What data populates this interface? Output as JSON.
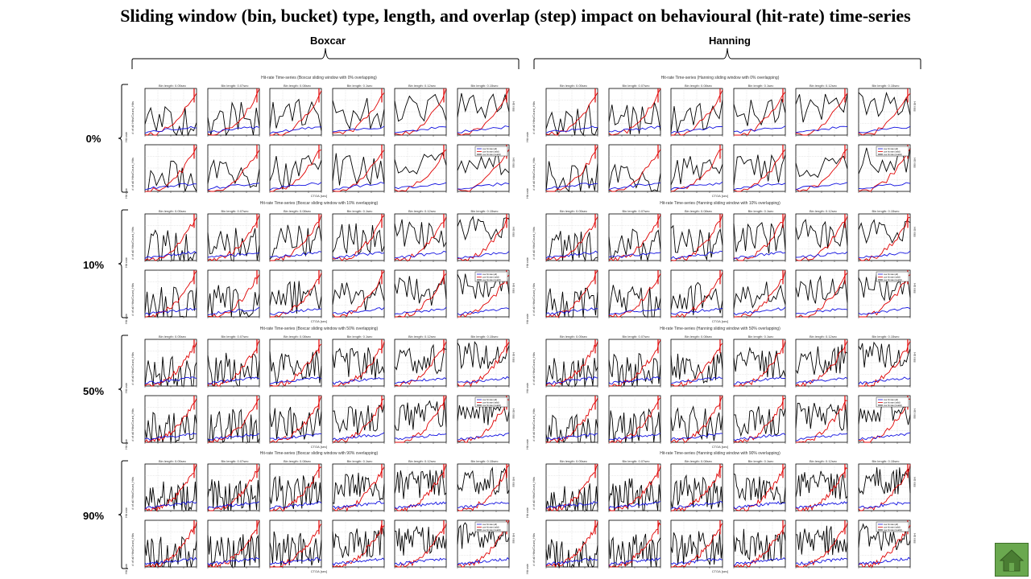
{
  "title": "Sliding window (bin, bucket) type, length, and overlap (step) impact on behavioural (hit-rate) time-series",
  "columns": [
    {
      "label": "Boxcar",
      "window_name": "Boxcar"
    },
    {
      "label": "Hanning",
      "window_name": "Hanning"
    }
  ],
  "rows": [
    {
      "label": "0%",
      "overlap": "0%"
    },
    {
      "label": "10%",
      "overlap": "10%"
    },
    {
      "label": "50%",
      "overlap": "50%"
    },
    {
      "label": "90%",
      "overlap": "90%"
    }
  ],
  "figure_title_template": "Hit-rate Time-series ({window} sliding window with {overlap} overlapping)",
  "panel_titles": [
    "Bin length: 0.05sec",
    "Bin length: 0.07sec",
    "Bin length: 0.08sec",
    "Bin length: 0.1sec",
    "Bin length: 0.12sec",
    "Bin length: 0.15sec"
  ],
  "x_axis_label": "CTOA [sec]",
  "y_axis_label": "Hit rate",
  "y_axis_label_left": "# of all\nHits/Count_Hits",
  "y2_axis_label": "Hit rate",
  "legend_entries": [
    "cue hit rate (all)",
    "cue hit rate (valid)",
    "cue hit rate (invalid)"
  ],
  "colors": {
    "black_series": "#000000",
    "red_series": "#e00000",
    "blue_series": "#1010e0",
    "home_fill": "#6aa84f",
    "home_icon": "#4a7d33"
  },
  "home_icon": "house-icon"
}
